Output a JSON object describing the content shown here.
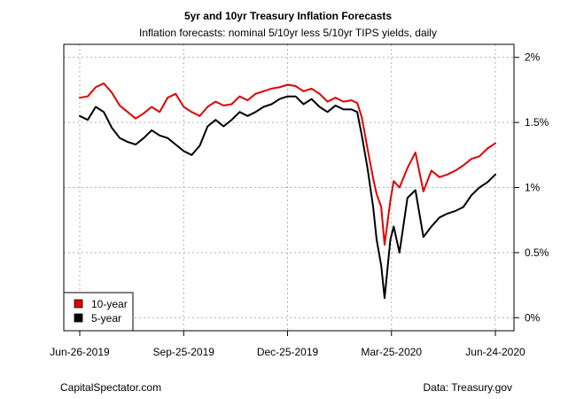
{
  "chart_data": {
    "type": "line",
    "title": "5yr and 10yr Treasury Inflation Forecasts",
    "subtitle": "Inflation forecasts: nominal 5/10yr less 5/10yr TIPS yields, daily",
    "xlabel": "",
    "ylabel": "",
    "xlim": [
      "2019-06-26",
      "2020-06-24"
    ],
    "ylim": [
      -0.1,
      2.1
    ],
    "x_ticks": [
      "2019-06-26",
      "2019-09-25",
      "2019-12-25",
      "2020-03-25",
      "2020-06-24"
    ],
    "x_tick_labels": [
      "Jun-26-2019",
      "Sep-25-2019",
      "Dec-25-2019",
      "Mar-25-2020",
      "Jun-24-2020"
    ],
    "y_ticks": [
      0,
      0.5,
      1,
      1.5,
      2
    ],
    "y_tick_labels": [
      "0%",
      "0.5%",
      "1%",
      "1.5%",
      "2%"
    ],
    "y_axis_side": "right",
    "grid": true,
    "legend_position": "bottom-left",
    "series": [
      {
        "name": "10-year",
        "color": "#e00000",
        "x": [
          "2019-06-26",
          "2019-07-03",
          "2019-07-10",
          "2019-07-17",
          "2019-07-24",
          "2019-07-31",
          "2019-08-07",
          "2019-08-14",
          "2019-08-21",
          "2019-08-28",
          "2019-09-04",
          "2019-09-11",
          "2019-09-18",
          "2019-09-25",
          "2019-10-02",
          "2019-10-09",
          "2019-10-16",
          "2019-10-23",
          "2019-10-30",
          "2019-11-06",
          "2019-11-13",
          "2019-11-20",
          "2019-11-27",
          "2019-12-04",
          "2019-12-11",
          "2019-12-18",
          "2019-12-25",
          "2020-01-01",
          "2020-01-08",
          "2020-01-15",
          "2020-01-22",
          "2020-01-29",
          "2020-02-05",
          "2020-02-12",
          "2020-02-19",
          "2020-02-24",
          "2020-02-28",
          "2020-03-04",
          "2020-03-09",
          "2020-03-12",
          "2020-03-16",
          "2020-03-19",
          "2020-03-24",
          "2020-03-27",
          "2020-04-01",
          "2020-04-08",
          "2020-04-15",
          "2020-04-22",
          "2020-04-29",
          "2020-05-06",
          "2020-05-13",
          "2020-05-20",
          "2020-05-27",
          "2020-06-03",
          "2020-06-10",
          "2020-06-17",
          "2020-06-24"
        ],
        "values": [
          1.69,
          1.7,
          1.77,
          1.8,
          1.73,
          1.63,
          1.58,
          1.53,
          1.57,
          1.62,
          1.58,
          1.69,
          1.72,
          1.62,
          1.58,
          1.55,
          1.62,
          1.66,
          1.63,
          1.64,
          1.7,
          1.67,
          1.72,
          1.74,
          1.76,
          1.77,
          1.79,
          1.78,
          1.74,
          1.76,
          1.72,
          1.66,
          1.69,
          1.66,
          1.67,
          1.65,
          1.54,
          1.3,
          1.07,
          0.95,
          0.85,
          0.56,
          0.9,
          1.05,
          1.0,
          1.15,
          1.27,
          0.97,
          1.13,
          1.08,
          1.1,
          1.13,
          1.17,
          1.22,
          1.24,
          1.3,
          1.34
        ]
      },
      {
        "name": "5-year",
        "color": "#000000",
        "x": [
          "2019-06-26",
          "2019-07-03",
          "2019-07-10",
          "2019-07-17",
          "2019-07-24",
          "2019-07-31",
          "2019-08-07",
          "2019-08-14",
          "2019-08-21",
          "2019-08-28",
          "2019-09-04",
          "2019-09-11",
          "2019-09-18",
          "2019-09-25",
          "2019-10-02",
          "2019-10-09",
          "2019-10-16",
          "2019-10-23",
          "2019-10-30",
          "2019-11-06",
          "2019-11-13",
          "2019-11-20",
          "2019-11-27",
          "2019-12-04",
          "2019-12-11",
          "2019-12-18",
          "2019-12-25",
          "2020-01-01",
          "2020-01-08",
          "2020-01-15",
          "2020-01-22",
          "2020-01-29",
          "2020-02-05",
          "2020-02-12",
          "2020-02-19",
          "2020-02-24",
          "2020-02-28",
          "2020-03-04",
          "2020-03-09",
          "2020-03-12",
          "2020-03-16",
          "2020-03-19",
          "2020-03-24",
          "2020-03-27",
          "2020-04-01",
          "2020-04-08",
          "2020-04-15",
          "2020-04-22",
          "2020-04-29",
          "2020-05-06",
          "2020-05-13",
          "2020-05-20",
          "2020-05-27",
          "2020-06-03",
          "2020-06-10",
          "2020-06-17",
          "2020-06-24"
        ],
        "values": [
          1.55,
          1.52,
          1.62,
          1.58,
          1.46,
          1.38,
          1.35,
          1.33,
          1.38,
          1.44,
          1.4,
          1.38,
          1.33,
          1.28,
          1.25,
          1.32,
          1.47,
          1.52,
          1.47,
          1.52,
          1.58,
          1.55,
          1.58,
          1.62,
          1.64,
          1.68,
          1.7,
          1.7,
          1.64,
          1.68,
          1.62,
          1.58,
          1.63,
          1.6,
          1.6,
          1.58,
          1.4,
          1.15,
          0.85,
          0.6,
          0.4,
          0.15,
          0.6,
          0.7,
          0.5,
          0.92,
          0.98,
          0.62,
          0.7,
          0.77,
          0.8,
          0.82,
          0.85,
          0.94,
          1.0,
          1.04,
          1.1
        ]
      }
    ]
  },
  "footer": {
    "left": "CapitalSpectator.com",
    "right": "Data: Treasury.gov"
  }
}
